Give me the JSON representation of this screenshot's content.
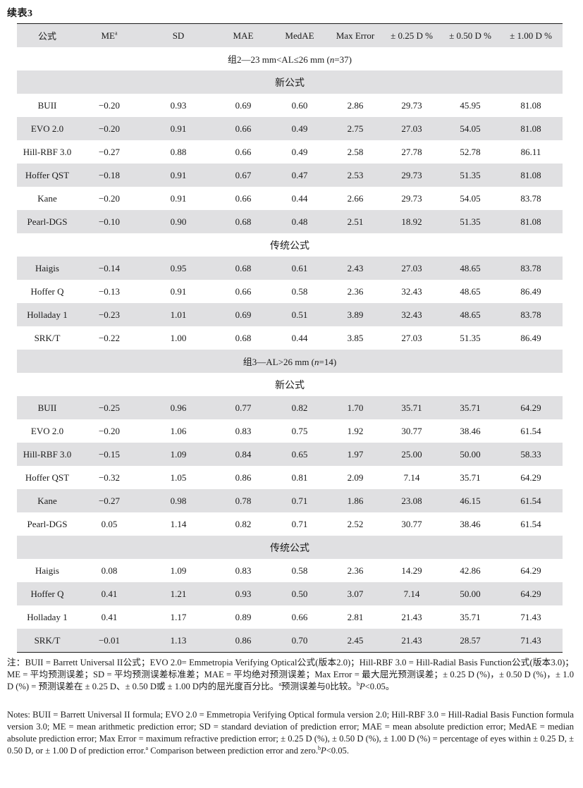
{
  "caption": "续表3",
  "header": {
    "formula": "公式",
    "me": "ME",
    "me_sup": "a",
    "sd": "SD",
    "mae": "MAE",
    "medae": "MedAE",
    "max_error": "Max Error",
    "p025": "± 0.25 D %",
    "p050": "± 0.50 D %",
    "p100": "± 1.00 D %"
  },
  "group2": {
    "label_prefix": "组2—23 mm<AL≤26 mm (",
    "n_italic": "n",
    "label_suffix": "=37)",
    "new_label": "新公式",
    "new_rows": [
      {
        "formula": "BUII",
        "me": "−0.20",
        "sd": "0.93",
        "mae": "0.69",
        "medae": "0.60",
        "max_error": "2.86",
        "p025": "29.73",
        "p050": "45.95",
        "p100": "81.08"
      },
      {
        "formula": "EVO 2.0",
        "me": "−0.20",
        "sd": "0.91",
        "mae": "0.66",
        "medae": "0.49",
        "max_error": "2.75",
        "p025": "27.03",
        "p050": "54.05",
        "p100": "81.08"
      },
      {
        "formula": "Hill-RBF 3.0",
        "me": "−0.27",
        "sd": "0.88",
        "mae": "0.66",
        "medae": "0.49",
        "max_error": "2.58",
        "p025": "27.78",
        "p050": "52.78",
        "p100": "86.11"
      },
      {
        "formula": "Hoffer QST",
        "me": "−0.18",
        "sd": "0.91",
        "mae": "0.67",
        "medae": "0.47",
        "max_error": "2.53",
        "p025": "29.73",
        "p050": "51.35",
        "p100": "81.08"
      },
      {
        "formula": "Kane",
        "me": "−0.20",
        "sd": "0.91",
        "mae": "0.66",
        "medae": "0.44",
        "max_error": "2.66",
        "p025": "29.73",
        "p050": "54.05",
        "p100": "83.78"
      },
      {
        "formula": "Pearl-DGS",
        "me": "−0.10",
        "sd": "0.90",
        "mae": "0.68",
        "medae": "0.48",
        "max_error": "2.51",
        "p025": "18.92",
        "p050": "51.35",
        "p100": "81.08"
      }
    ],
    "trad_label": "传统公式",
    "trad_rows": [
      {
        "formula": "Haigis",
        "me": "−0.14",
        "sd": "0.95",
        "mae": "0.68",
        "medae": "0.61",
        "max_error": "2.43",
        "p025": "27.03",
        "p050": "48.65",
        "p100": "83.78"
      },
      {
        "formula": "Hoffer Q",
        "me": "−0.13",
        "sd": "0.91",
        "mae": "0.66",
        "medae": "0.58",
        "max_error": "2.36",
        "p025": "32.43",
        "p050": "48.65",
        "p100": "86.49"
      },
      {
        "formula": "Holladay 1",
        "me": "−0.23",
        "sd": "1.01",
        "mae": "0.69",
        "medae": "0.51",
        "max_error": "3.89",
        "p025": "32.43",
        "p050": "48.65",
        "p100": "83.78"
      },
      {
        "formula": "SRK/T",
        "me": "−0.22",
        "sd": "1.00",
        "mae": "0.68",
        "medae": "0.44",
        "max_error": "3.85",
        "p025": "27.03",
        "p050": "51.35",
        "p100": "86.49"
      }
    ]
  },
  "group3": {
    "label_prefix": "组3—AL>26 mm (",
    "n_italic": "n",
    "label_suffix": "=14)",
    "new_label": "新公式",
    "new_rows": [
      {
        "formula": "BUII",
        "me": "−0.25",
        "sd": "0.96",
        "mae": "0.77",
        "medae": "0.82",
        "max_error": "1.70",
        "p025": "35.71",
        "p050": "35.71",
        "p100": "64.29"
      },
      {
        "formula": "EVO 2.0",
        "me": "−0.20",
        "sd": "1.06",
        "mae": "0.83",
        "medae": "0.75",
        "max_error": "1.92",
        "p025": "30.77",
        "p050": "38.46",
        "p100": "61.54"
      },
      {
        "formula": "Hill-RBF 3.0",
        "me": "−0.15",
        "sd": "1.09",
        "mae": "0.84",
        "medae": "0.65",
        "max_error": "1.97",
        "p025": "25.00",
        "p050": "50.00",
        "p100": "58.33"
      },
      {
        "formula": "Hoffer QST",
        "me": "−0.32",
        "sd": "1.05",
        "mae": "0.86",
        "medae": "0.81",
        "max_error": "2.09",
        "p025": "7.14",
        "p050": "35.71",
        "p100": "64.29"
      },
      {
        "formula": "Kane",
        "me": "−0.27",
        "sd": "0.98",
        "mae": "0.78",
        "medae": "0.71",
        "max_error": "1.86",
        "p025": "23.08",
        "p050": "46.15",
        "p100": "61.54"
      },
      {
        "formula": "Pearl-DGS",
        "me": "0.05",
        "sd": "1.14",
        "mae": "0.82",
        "medae": "0.71",
        "max_error": "2.52",
        "p025": "30.77",
        "p050": "38.46",
        "p100": "61.54"
      }
    ],
    "trad_label": "传统公式",
    "trad_rows": [
      {
        "formula": "Haigis",
        "me": "0.08",
        "sd": "1.09",
        "mae": "0.83",
        "medae": "0.58",
        "max_error": "2.36",
        "p025": "14.29",
        "p050": "42.86",
        "p100": "64.29"
      },
      {
        "formula": "Hoffer Q",
        "me": "0.41",
        "sd": "1.21",
        "mae": "0.93",
        "medae": "0.50",
        "max_error": "3.07",
        "p025": "7.14",
        "p050": "50.00",
        "p100": "64.29"
      },
      {
        "formula": "Holladay 1",
        "me": "0.41",
        "sd": "1.17",
        "mae": "0.89",
        "medae": "0.66",
        "max_error": "2.81",
        "p025": "21.43",
        "p050": "35.71",
        "p100": "71.43"
      },
      {
        "formula": "SRK/T",
        "me": "−0.01",
        "sd": "1.13",
        "mae": "0.86",
        "medae": "0.70",
        "max_error": "2.45",
        "p025": "21.43",
        "p050": "28.57",
        "p100": "71.43"
      }
    ]
  },
  "notes": {
    "zh_main": "注：BUII = Barrett Universal II公式；EVO 2.0= Emmetropia Verifying Optical公式(版本2.0)；Hill-RBF 3.0 = Hill-Radial Basis Function公式(版本3.0)；ME = 平均预测误差；SD = 平均预测误差标准差；MAE = 平均绝对预测误差；Max Error = 最大屈光预测误差；± 0.25 D (%)，± 0.50 D (%)，± 1.0 D (%) = 预测误差在 ± 0.25 D、± 0.50 D或 ± 1.00 D内的屈光度百分比。",
    "zh_sup_a": "a",
    "zh_a_text": "预测误差与0比较。",
    "zh_sup_b": "b",
    "zh_p_italic": "P",
    "zh_p_text": "<0.05。",
    "en_main": "Notes: BUII = Barrett Universal II formula; EVO 2.0 = Emmetropia Verifying Optical formula version 2.0; Hill-RBF 3.0 = Hill-Radial Basis Function formula version 3.0; ME = mean arithmetic prediction error; SD = standard deviation of prediction error; MAE = mean absolute prediction error; MedAE = median absolute prediction error; Max Error = maximum refractive prediction error; ± 0.25 D (%), ± 0.50 D (%), ± 1.00 D (%) = percentage of eyes within ± 0.25 D, ± 0.50 D, or ± 1.00 D of prediction error.",
    "en_sup_a": "a",
    "en_a_text": " Comparison between prediction error and zero.",
    "en_sup_b": "b",
    "en_p_italic": "P",
    "en_p_text": "<0.05."
  }
}
